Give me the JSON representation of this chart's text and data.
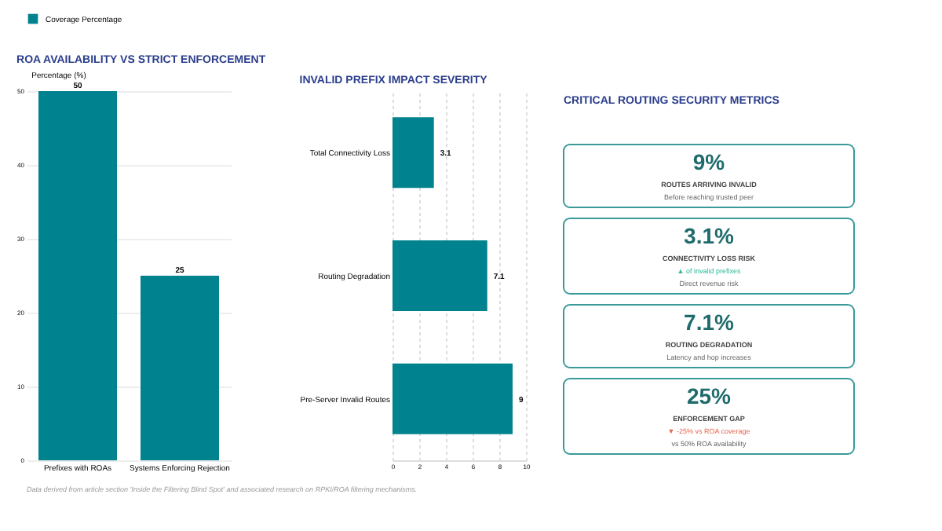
{
  "chart_data": [
    {
      "type": "bar",
      "title": "ROA AVAILABILITY VS STRICT ENFORCEMENT",
      "ylabel": "Percentage (%)",
      "categories": [
        "Prefixes with ROAs",
        "Systems Enforcing Rejection"
      ],
      "series": [
        {
          "name": "Coverage Percentage",
          "color": "#00838f",
          "values": [
            50,
            25
          ]
        }
      ],
      "ylim": [
        0,
        50
      ],
      "yticks": [
        0,
        10,
        20,
        30,
        40,
        50
      ],
      "grid": "y",
      "legend": "top",
      "data_labels": true,
      "annotations": [
        "Data derived from article section 'Inside the Filtering Blind Spot' and associated research on RPKI/ROA filtering mechanisms."
      ]
    },
    {
      "type": "bar",
      "orientation": "horizontal",
      "title": "INVALID PREFIX IMPACT SEVERITY",
      "categories": [
        "Total Connectivity Loss",
        "Routing Degradation",
        "Pre-Server Invalid Routes"
      ],
      "series": [
        {
          "color": "#00838f",
          "values": [
            3.1,
            7.1,
            9
          ]
        }
      ],
      "xlim": [
        0,
        10
      ],
      "xticks": [
        0,
        2,
        4,
        6,
        8,
        10
      ],
      "grid": "x",
      "data_labels": true
    },
    {
      "type": "other",
      "title": "CRITICAL ROUTING SECURITY METRICS"
    },
    {
      "type": "other",
      "title": "9%",
      "subtitle": "ROUTES ARRIVING INVALID",
      "annotations": [
        "Before reaching trusted peer"
      ]
    },
    {
      "type": "other",
      "title": "3.1%",
      "subtitle": "CONNECTIVITY LOSS RISK",
      "annotations": [
        "▲ of invalid prefixes",
        "Direct revenue risk"
      ],
      "colors": [
        "#26b99a",
        "#666666"
      ]
    },
    {
      "type": "other",
      "title": "7.1%",
      "subtitle": "ROUTING DEGRADATION",
      "annotations": [
        "Latency and hop increases"
      ]
    },
    {
      "type": "other",
      "title": "25%",
      "subtitle": "ENFORCEMENT GAP",
      "annotations": [
        "▼ -25% vs ROA coverage",
        "vs 50% ROA availability"
      ],
      "colors": [
        "#e8664f",
        "#666666"
      ]
    }
  ]
}
